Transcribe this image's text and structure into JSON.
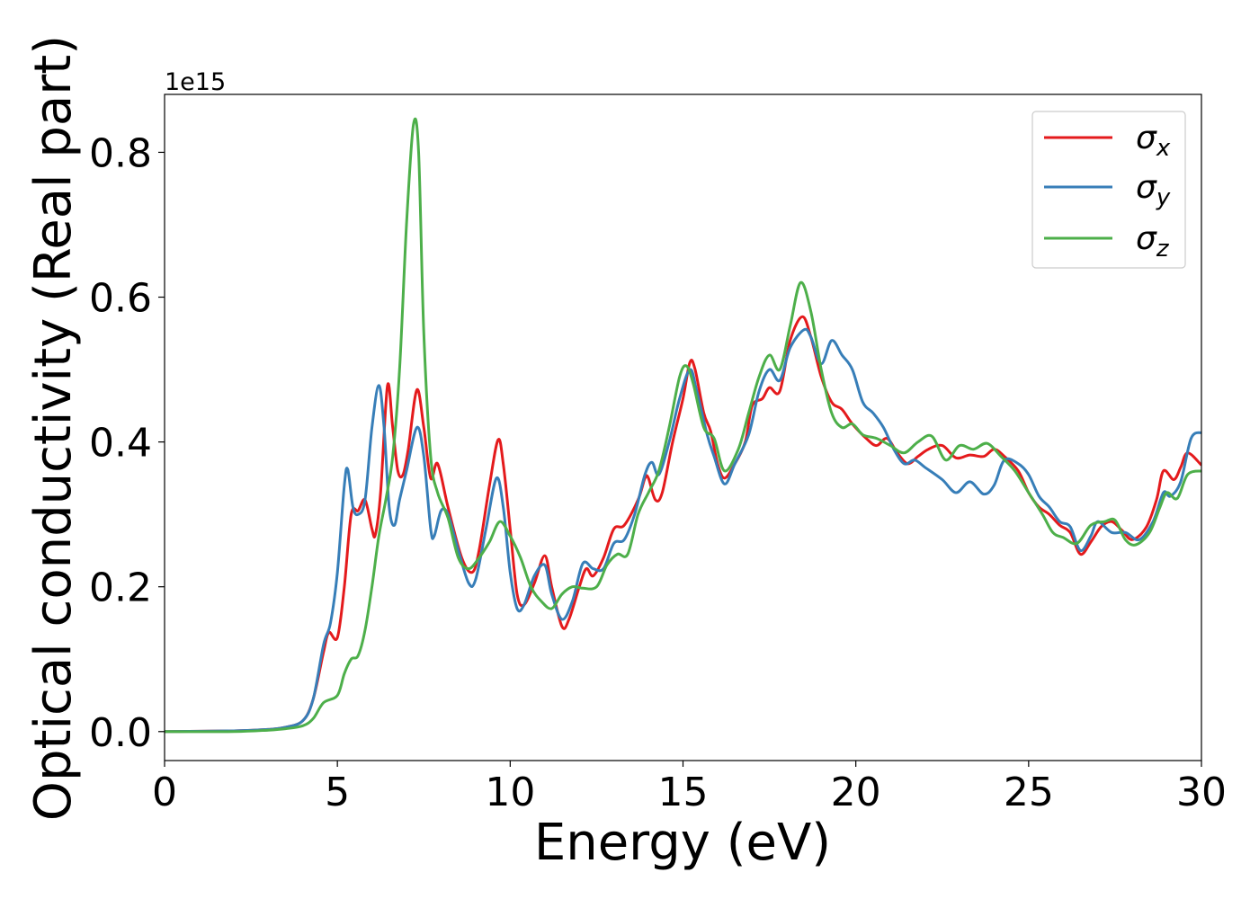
{
  "chart_data": {
    "type": "line",
    "title": "",
    "xlabel": "Energy (eV)",
    "ylabel": "Optical conductivity (Real part)",
    "y_offset_label": "1e15",
    "xlim": [
      0,
      30
    ],
    "ylim": [
      -0.04,
      0.88
    ],
    "x_ticks": [
      0,
      5,
      10,
      15,
      20,
      25,
      30
    ],
    "x_tick_labels": [
      "0",
      "5",
      "10",
      "15",
      "20",
      "25",
      "30"
    ],
    "y_ticks": [
      0.0,
      0.2,
      0.4,
      0.6,
      0.8
    ],
    "y_tick_labels": [
      "0.0",
      "0.2",
      "0.4",
      "0.6",
      "0.8"
    ],
    "grid": false,
    "legend_position": "top-right",
    "series": [
      {
        "name": "σx",
        "base": "σ",
        "sub": "x",
        "color": "#e41a1c",
        "points": [
          [
            0,
            0
          ],
          [
            2,
            0.001
          ],
          [
            3,
            0.003
          ],
          [
            3.5,
            0.006
          ],
          [
            4.0,
            0.015
          ],
          [
            4.3,
            0.045
          ],
          [
            4.6,
            0.11
          ],
          [
            4.75,
            0.137
          ],
          [
            5.0,
            0.13
          ],
          [
            5.2,
            0.2
          ],
          [
            5.4,
            0.3
          ],
          [
            5.6,
            0.305
          ],
          [
            5.8,
            0.32
          ],
          [
            6.0,
            0.28
          ],
          [
            6.1,
            0.272
          ],
          [
            6.25,
            0.33
          ],
          [
            6.45,
            0.478
          ],
          [
            6.6,
            0.42
          ],
          [
            6.75,
            0.36
          ],
          [
            6.9,
            0.355
          ],
          [
            7.05,
            0.39
          ],
          [
            7.3,
            0.472
          ],
          [
            7.5,
            0.42
          ],
          [
            7.7,
            0.35
          ],
          [
            7.9,
            0.37
          ],
          [
            8.2,
            0.31
          ],
          [
            8.6,
            0.24
          ],
          [
            8.9,
            0.22
          ],
          [
            9.1,
            0.25
          ],
          [
            9.4,
            0.34
          ],
          [
            9.65,
            0.403
          ],
          [
            9.8,
            0.37
          ],
          [
            10.0,
            0.28
          ],
          [
            10.2,
            0.19
          ],
          [
            10.4,
            0.175
          ],
          [
            10.7,
            0.205
          ],
          [
            11.0,
            0.243
          ],
          [
            11.2,
            0.2
          ],
          [
            11.5,
            0.145
          ],
          [
            11.7,
            0.155
          ],
          [
            12.0,
            0.2
          ],
          [
            12.2,
            0.225
          ],
          [
            12.4,
            0.215
          ],
          [
            12.7,
            0.24
          ],
          [
            13.0,
            0.28
          ],
          [
            13.3,
            0.285
          ],
          [
            13.7,
            0.32
          ],
          [
            13.9,
            0.35
          ],
          [
            14.0,
            0.35
          ],
          [
            14.2,
            0.32
          ],
          [
            14.4,
            0.33
          ],
          [
            14.7,
            0.4
          ],
          [
            15.0,
            0.46
          ],
          [
            15.2,
            0.51
          ],
          [
            15.35,
            0.5
          ],
          [
            15.6,
            0.44
          ],
          [
            15.8,
            0.415
          ],
          [
            16.0,
            0.37
          ],
          [
            16.2,
            0.35
          ],
          [
            16.5,
            0.37
          ],
          [
            16.8,
            0.4
          ],
          [
            17.0,
            0.45
          ],
          [
            17.3,
            0.46
          ],
          [
            17.5,
            0.475
          ],
          [
            17.8,
            0.47
          ],
          [
            18.1,
            0.54
          ],
          [
            18.45,
            0.573
          ],
          [
            18.7,
            0.545
          ],
          [
            19.0,
            0.49
          ],
          [
            19.3,
            0.455
          ],
          [
            19.6,
            0.445
          ],
          [
            19.9,
            0.425
          ],
          [
            20.3,
            0.405
          ],
          [
            20.6,
            0.395
          ],
          [
            20.9,
            0.405
          ],
          [
            21.2,
            0.385
          ],
          [
            21.5,
            0.37
          ],
          [
            21.8,
            0.38
          ],
          [
            22.1,
            0.39
          ],
          [
            22.5,
            0.395
          ],
          [
            22.9,
            0.378
          ],
          [
            23.3,
            0.382
          ],
          [
            23.7,
            0.38
          ],
          [
            24.0,
            0.39
          ],
          [
            24.3,
            0.38
          ],
          [
            24.7,
            0.36
          ],
          [
            25.0,
            0.33
          ],
          [
            25.3,
            0.31
          ],
          [
            25.6,
            0.3
          ],
          [
            25.9,
            0.285
          ],
          [
            26.2,
            0.275
          ],
          [
            26.5,
            0.245
          ],
          [
            26.8,
            0.262
          ],
          [
            27.1,
            0.283
          ],
          [
            27.4,
            0.29
          ],
          [
            27.7,
            0.278
          ],
          [
            28.0,
            0.265
          ],
          [
            28.4,
            0.282
          ],
          [
            28.7,
            0.32
          ],
          [
            28.9,
            0.36
          ],
          [
            29.2,
            0.348
          ],
          [
            29.4,
            0.365
          ],
          [
            29.6,
            0.385
          ],
          [
            30.0,
            0.368
          ]
        ]
      },
      {
        "name": "σy",
        "base": "σ",
        "sub": "y",
        "color": "#377eb8",
        "points": [
          [
            0,
            0
          ],
          [
            2,
            0.001
          ],
          [
            3,
            0.003
          ],
          [
            3.5,
            0.006
          ],
          [
            4.0,
            0.015
          ],
          [
            4.3,
            0.045
          ],
          [
            4.6,
            0.12
          ],
          [
            4.8,
            0.15
          ],
          [
            5.0,
            0.22
          ],
          [
            5.2,
            0.34
          ],
          [
            5.3,
            0.362
          ],
          [
            5.45,
            0.31
          ],
          [
            5.6,
            0.3
          ],
          [
            5.8,
            0.32
          ],
          [
            6.0,
            0.42
          ],
          [
            6.2,
            0.478
          ],
          [
            6.35,
            0.42
          ],
          [
            6.5,
            0.31
          ],
          [
            6.65,
            0.285
          ],
          [
            6.8,
            0.32
          ],
          [
            7.0,
            0.36
          ],
          [
            7.3,
            0.42
          ],
          [
            7.5,
            0.38
          ],
          [
            7.7,
            0.28
          ],
          [
            7.8,
            0.27
          ],
          [
            8.0,
            0.305
          ],
          [
            8.2,
            0.3
          ],
          [
            8.5,
            0.25
          ],
          [
            8.8,
            0.205
          ],
          [
            9.0,
            0.21
          ],
          [
            9.3,
            0.28
          ],
          [
            9.6,
            0.35
          ],
          [
            9.8,
            0.31
          ],
          [
            10.0,
            0.22
          ],
          [
            10.2,
            0.17
          ],
          [
            10.4,
            0.175
          ],
          [
            10.7,
            0.215
          ],
          [
            11.0,
            0.23
          ],
          [
            11.2,
            0.19
          ],
          [
            11.5,
            0.155
          ],
          [
            11.8,
            0.18
          ],
          [
            12.1,
            0.232
          ],
          [
            12.4,
            0.225
          ],
          [
            12.7,
            0.225
          ],
          [
            13.0,
            0.26
          ],
          [
            13.3,
            0.265
          ],
          [
            13.6,
            0.3
          ],
          [
            13.9,
            0.355
          ],
          [
            14.1,
            0.372
          ],
          [
            14.3,
            0.355
          ],
          [
            14.6,
            0.4
          ],
          [
            14.9,
            0.46
          ],
          [
            15.2,
            0.5
          ],
          [
            15.4,
            0.47
          ],
          [
            15.7,
            0.41
          ],
          [
            15.9,
            0.38
          ],
          [
            16.2,
            0.342
          ],
          [
            16.5,
            0.37
          ],
          [
            16.9,
            0.41
          ],
          [
            17.2,
            0.47
          ],
          [
            17.5,
            0.5
          ],
          [
            17.8,
            0.485
          ],
          [
            18.1,
            0.53
          ],
          [
            18.5,
            0.555
          ],
          [
            18.7,
            0.545
          ],
          [
            19.0,
            0.508
          ],
          [
            19.3,
            0.54
          ],
          [
            19.6,
            0.52
          ],
          [
            19.9,
            0.5
          ],
          [
            20.2,
            0.455
          ],
          [
            20.5,
            0.44
          ],
          [
            20.8,
            0.42
          ],
          [
            21.1,
            0.39
          ],
          [
            21.4,
            0.37
          ],
          [
            21.7,
            0.375
          ],
          [
            22.0,
            0.365
          ],
          [
            22.5,
            0.348
          ],
          [
            22.9,
            0.33
          ],
          [
            23.3,
            0.345
          ],
          [
            23.7,
            0.328
          ],
          [
            24.0,
            0.34
          ],
          [
            24.3,
            0.375
          ],
          [
            24.7,
            0.37
          ],
          [
            25.0,
            0.355
          ],
          [
            25.3,
            0.325
          ],
          [
            25.6,
            0.31
          ],
          [
            25.9,
            0.29
          ],
          [
            26.2,
            0.283
          ],
          [
            26.5,
            0.25
          ],
          [
            26.8,
            0.27
          ],
          [
            27.0,
            0.29
          ],
          [
            27.4,
            0.275
          ],
          [
            27.8,
            0.275
          ],
          [
            28.2,
            0.265
          ],
          [
            28.6,
            0.29
          ],
          [
            28.9,
            0.33
          ],
          [
            29.1,
            0.325
          ],
          [
            29.4,
            0.345
          ],
          [
            29.7,
            0.405
          ],
          [
            30.0,
            0.413
          ]
        ]
      },
      {
        "name": "σz",
        "base": "σ",
        "sub": "z",
        "color": "#4daf4a",
        "points": [
          [
            0,
            0
          ],
          [
            2,
            0.0
          ],
          [
            3,
            0.002
          ],
          [
            3.5,
            0.004
          ],
          [
            4.0,
            0.008
          ],
          [
            4.3,
            0.018
          ],
          [
            4.6,
            0.04
          ],
          [
            5.0,
            0.05
          ],
          [
            5.2,
            0.08
          ],
          [
            5.4,
            0.1
          ],
          [
            5.6,
            0.105
          ],
          [
            5.8,
            0.14
          ],
          [
            6.0,
            0.2
          ],
          [
            6.2,
            0.27
          ],
          [
            6.4,
            0.32
          ],
          [
            6.6,
            0.38
          ],
          [
            6.8,
            0.5
          ],
          [
            7.0,
            0.7
          ],
          [
            7.2,
            0.838
          ],
          [
            7.35,
            0.8
          ],
          [
            7.5,
            0.55
          ],
          [
            7.7,
            0.38
          ],
          [
            7.9,
            0.33
          ],
          [
            8.2,
            0.295
          ],
          [
            8.5,
            0.24
          ],
          [
            8.8,
            0.225
          ],
          [
            9.1,
            0.24
          ],
          [
            9.4,
            0.262
          ],
          [
            9.7,
            0.29
          ],
          [
            10.0,
            0.27
          ],
          [
            10.3,
            0.24
          ],
          [
            10.6,
            0.2
          ],
          [
            10.9,
            0.18
          ],
          [
            11.2,
            0.17
          ],
          [
            11.5,
            0.19
          ],
          [
            11.8,
            0.2
          ],
          [
            12.1,
            0.198
          ],
          [
            12.5,
            0.2
          ],
          [
            12.8,
            0.23
          ],
          [
            13.1,
            0.245
          ],
          [
            13.4,
            0.245
          ],
          [
            13.7,
            0.3
          ],
          [
            14.0,
            0.33
          ],
          [
            14.3,
            0.36
          ],
          [
            14.6,
            0.42
          ],
          [
            14.9,
            0.49
          ],
          [
            15.1,
            0.505
          ],
          [
            15.3,
            0.48
          ],
          [
            15.6,
            0.42
          ],
          [
            15.9,
            0.405
          ],
          [
            16.2,
            0.36
          ],
          [
            16.6,
            0.39
          ],
          [
            16.9,
            0.44
          ],
          [
            17.2,
            0.49
          ],
          [
            17.5,
            0.52
          ],
          [
            17.8,
            0.5
          ],
          [
            18.1,
            0.56
          ],
          [
            18.4,
            0.62
          ],
          [
            18.7,
            0.58
          ],
          [
            19.0,
            0.5
          ],
          [
            19.3,
            0.44
          ],
          [
            19.6,
            0.42
          ],
          [
            19.9,
            0.425
          ],
          [
            20.2,
            0.41
          ],
          [
            20.6,
            0.405
          ],
          [
            21.0,
            0.395
          ],
          [
            21.4,
            0.385
          ],
          [
            21.8,
            0.4
          ],
          [
            22.2,
            0.408
          ],
          [
            22.6,
            0.375
          ],
          [
            23.0,
            0.395
          ],
          [
            23.4,
            0.39
          ],
          [
            23.8,
            0.398
          ],
          [
            24.2,
            0.38
          ],
          [
            24.6,
            0.36
          ],
          [
            25.0,
            0.33
          ],
          [
            25.4,
            0.3
          ],
          [
            25.7,
            0.275
          ],
          [
            26.0,
            0.268
          ],
          [
            26.4,
            0.26
          ],
          [
            26.8,
            0.285
          ],
          [
            27.2,
            0.29
          ],
          [
            27.5,
            0.292
          ],
          [
            27.8,
            0.265
          ],
          [
            28.1,
            0.258
          ],
          [
            28.5,
            0.275
          ],
          [
            28.8,
            0.31
          ],
          [
            29.0,
            0.33
          ],
          [
            29.3,
            0.322
          ],
          [
            29.6,
            0.355
          ],
          [
            30.0,
            0.36
          ]
        ]
      }
    ]
  }
}
